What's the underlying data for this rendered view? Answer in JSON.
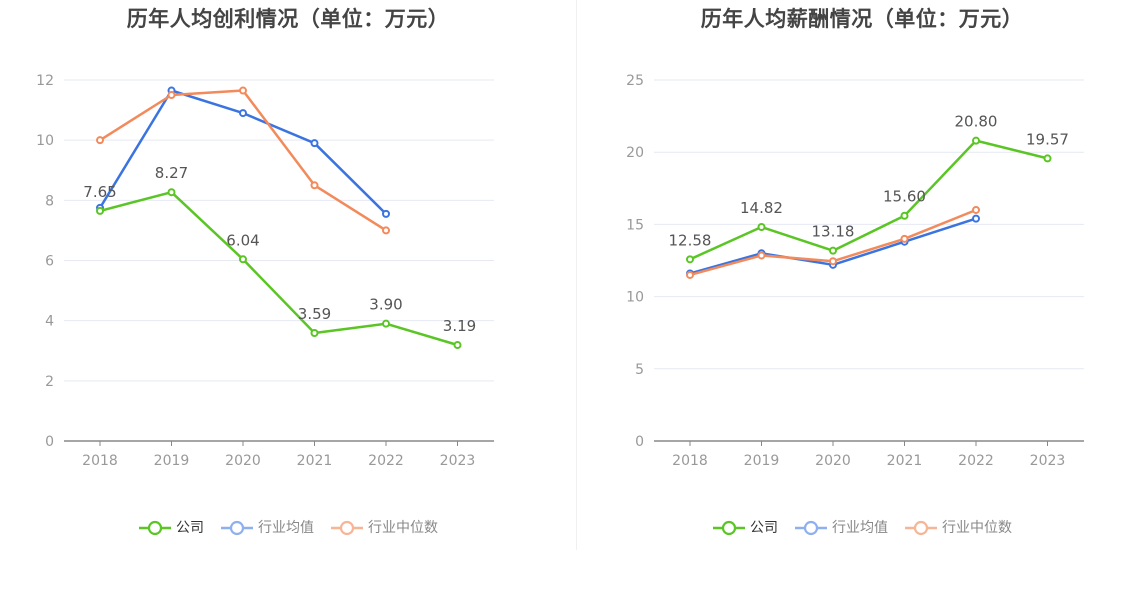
{
  "chart_data": [
    {
      "type": "line",
      "title": "历年人均创利情况（单位：万元）",
      "categories": [
        "2018",
        "2019",
        "2020",
        "2021",
        "2022",
        "2023"
      ],
      "ylim": [
        0,
        12
      ],
      "yticks": [
        0,
        2,
        4,
        6,
        8,
        10,
        12
      ],
      "grid": true,
      "legend_position": "bottom-center",
      "series": [
        {
          "name": "公司",
          "color": "#5ac524",
          "values": [
            7.65,
            8.27,
            6.04,
            3.59,
            3.9,
            3.19
          ],
          "labels": [
            "7.65",
            "8.27",
            "6.04",
            "3.59",
            "3.90",
            "3.19"
          ]
        },
        {
          "name": "行业均值",
          "color": "#3b74e0",
          "values": [
            7.75,
            11.65,
            10.9,
            9.9,
            7.55,
            null
          ]
        },
        {
          "name": "行业中位数",
          "color": "#f28a5b",
          "values": [
            10.0,
            11.5,
            11.65,
            8.5,
            7.0,
            null
          ]
        }
      ]
    },
    {
      "type": "line",
      "title": "历年人均薪酬情况（单位：万元）",
      "categories": [
        "2018",
        "2019",
        "2020",
        "2021",
        "2022",
        "2023"
      ],
      "ylim": [
        0,
        25
      ],
      "yticks": [
        0,
        5,
        10,
        15,
        20,
        25
      ],
      "grid": true,
      "legend_position": "bottom-center",
      "series": [
        {
          "name": "公司",
          "color": "#5ac524",
          "values": [
            12.58,
            14.82,
            13.18,
            15.6,
            20.8,
            19.57
          ],
          "labels": [
            "12.58",
            "14.82",
            "13.18",
            "15.60",
            "20.80",
            "19.57"
          ]
        },
        {
          "name": "行业均值",
          "color": "#3b74e0",
          "values": [
            11.6,
            13.0,
            12.2,
            13.8,
            15.4,
            null
          ]
        },
        {
          "name": "行业中位数",
          "color": "#f28a5b",
          "values": [
            11.5,
            12.85,
            12.45,
            14.0,
            16.0,
            null
          ]
        }
      ]
    }
  ],
  "legend": {
    "items": [
      {
        "label": "公司",
        "color": "#5ac524",
        "text_color": "#333333"
      },
      {
        "label": "行业均值",
        "color": "#8fb0ee",
        "text_color": "#888888"
      },
      {
        "label": "行业中位数",
        "color": "#f6b595",
        "text_color": "#888888"
      }
    ]
  },
  "style": {
    "axis_label_color": "#999999",
    "grid_color": "#e6e9f2",
    "axis_line_color": "#888888",
    "value_label_color": "#555555"
  }
}
